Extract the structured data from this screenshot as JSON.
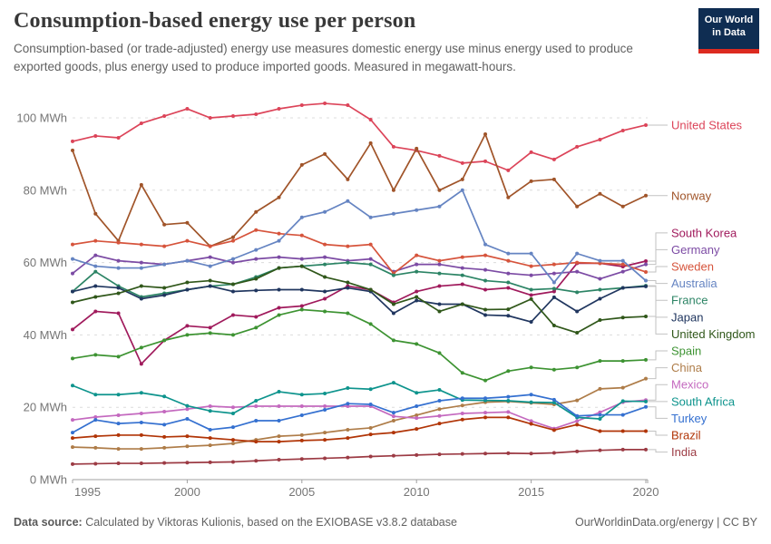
{
  "header": {
    "title": "Consumption-based energy use per person",
    "subtitle": "Consumption-based (or trade-adjusted) energy use measures domestic energy use minus energy used to produce exported goods, plus energy used to produce imported goods. Measured in megawatt-hours.",
    "logo": {
      "line1": "Our World",
      "line2": "in Data"
    }
  },
  "footer": {
    "source_label": "Data source:",
    "source_text": " Calculated by Viktoras Kulionis, based on the EXIOBASE v3.8.2 database",
    "link": "OurWorldinData.org/energy",
    "separator": " | ",
    "license": "CC BY"
  },
  "chart_data": {
    "type": "line",
    "title": "Consumption-based energy use per person",
    "unit": "MWh",
    "x": [
      1995,
      1996,
      1997,
      1998,
      1999,
      2000,
      2001,
      2002,
      2003,
      2004,
      2005,
      2006,
      2007,
      2008,
      2009,
      2010,
      2011,
      2012,
      2013,
      2014,
      2015,
      2016,
      2017,
      2018,
      2019,
      2020
    ],
    "x_ticks": [
      1995,
      2000,
      2005,
      2010,
      2015,
      2020
    ],
    "y_ticks": [
      0,
      20,
      40,
      60,
      80,
      100
    ],
    "y_tick_suffix": " MWh",
    "ylim": [
      0,
      105
    ],
    "grid": "dashed-horizontal",
    "legend_position": "right-of-line-ends",
    "series": [
      {
        "name": "United States",
        "color": "#dc4459",
        "values": [
          93.5,
          95,
          94.5,
          98.5,
          100.5,
          102.5,
          100,
          100.5,
          101,
          102.5,
          103.5,
          104,
          103.5,
          99.5,
          92,
          91,
          89.5,
          87.5,
          88,
          85.5,
          90.5,
          88.5,
          92,
          94,
          96.5,
          98
        ]
      },
      {
        "name": "Norway",
        "color": "#a05429",
        "values": [
          91,
          73.5,
          66,
          81.5,
          70.5,
          71,
          64.5,
          67,
          74,
          78,
          87,
          90,
          83,
          93,
          80,
          91.5,
          80,
          83,
          95.5,
          78,
          82.5,
          83,
          75.5,
          79,
          75.5,
          78.5
        ]
      },
      {
        "name": "South Korea",
        "color": "#a01a5c",
        "values": [
          41.5,
          46.5,
          46,
          32,
          38.5,
          42.5,
          42,
          45.5,
          45,
          47.5,
          48,
          50,
          53.5,
          52.5,
          49,
          52,
          53.5,
          54,
          52.5,
          53,
          51,
          52,
          59.8,
          59.8,
          58.9,
          60.4
        ]
      },
      {
        "name": "Germany",
        "color": "#7c4ba4",
        "values": [
          57,
          62,
          60.5,
          60,
          59.5,
          60.5,
          61.5,
          60,
          61,
          61.5,
          61,
          61.5,
          60.5,
          61,
          57.5,
          59.5,
          59.5,
          58.5,
          58,
          57,
          56.5,
          57,
          57.5,
          55.5,
          57.5,
          59.5
        ]
      },
      {
        "name": "Sweden",
        "color": "#d6543c",
        "values": [
          65,
          66,
          65.5,
          65,
          64.5,
          66,
          64.5,
          66,
          69,
          68,
          67.5,
          65,
          64.5,
          65,
          57,
          62,
          60.5,
          61.5,
          62,
          60.5,
          59,
          59.5,
          60,
          59.8,
          59.5,
          57.4
        ]
      },
      {
        "name": "Australia",
        "color": "#6584c2",
        "values": [
          61,
          59,
          58.5,
          58.5,
          59.5,
          60.5,
          59,
          61,
          63.5,
          66,
          72.5,
          74,
          77,
          72.5,
          73.5,
          74.5,
          75.5,
          80,
          65,
          62.5,
          62.5,
          54.5,
          62.5,
          60.5,
          60.5,
          55
        ]
      },
      {
        "name": "France",
        "color": "#2c8465",
        "values": [
          52,
          57.5,
          53.5,
          50.5,
          51.5,
          52.5,
          53.5,
          54,
          56,
          58.5,
          59,
          59.5,
          60,
          59.5,
          56.5,
          57.5,
          57,
          56.5,
          55,
          54.5,
          52.5,
          52.8,
          51.8,
          52.5,
          53,
          53.6
        ]
      },
      {
        "name": "Japan",
        "color": "#20365f",
        "values": [
          52,
          53.5,
          53,
          50,
          51,
          52.5,
          53.5,
          52,
          52.3,
          52.5,
          52.5,
          52,
          53,
          52,
          46,
          49.5,
          48.5,
          48.5,
          45.5,
          45.3,
          43.6,
          50.4,
          46.5,
          50,
          53,
          53.4
        ]
      },
      {
        "name": "United Kingdom",
        "color": "#30571a",
        "values": [
          49,
          50.5,
          51.5,
          53.5,
          53,
          54.5,
          55,
          54,
          55.5,
          58.5,
          59,
          56,
          54.5,
          52.5,
          48.5,
          50.5,
          46.5,
          48.5,
          47,
          47.1,
          49.9,
          42.6,
          40.6,
          44.1,
          44.8,
          45.1
        ]
      },
      {
        "name": "Spain",
        "color": "#3d9332",
        "values": [
          33.5,
          34.5,
          34,
          36.5,
          38.5,
          40,
          40.5,
          40,
          42,
          45.5,
          47,
          46.5,
          46,
          43,
          38.5,
          37.5,
          35,
          29.5,
          27.4,
          30,
          31,
          30.4,
          31,
          32.8,
          32.8,
          33.1
        ]
      },
      {
        "name": "China",
        "color": "#ae7c48",
        "values": [
          9,
          8.8,
          8.5,
          8.5,
          8.8,
          9.2,
          9.5,
          10,
          11,
          12,
          12.3,
          13,
          13.8,
          14.3,
          16.3,
          17.8,
          19.5,
          20.5,
          21.4,
          21.6,
          21.2,
          20.8,
          21.9,
          25.1,
          25.4,
          27.9
        ]
      },
      {
        "name": "Mexico",
        "color": "#c469bf",
        "values": [
          16.5,
          17.3,
          17.8,
          18.3,
          18.8,
          19.5,
          20.3,
          20,
          20.3,
          20.3,
          20.3,
          20.3,
          20.3,
          20.3,
          17.5,
          17,
          17.6,
          18.3,
          18.5,
          18.7,
          16.2,
          14.1,
          16.2,
          18.6,
          21.4,
          22
        ]
      },
      {
        "name": "South Africa",
        "color": "#0e948d",
        "values": [
          26,
          23.5,
          23.5,
          24,
          23,
          20.4,
          19,
          18.3,
          21.8,
          24.3,
          23.5,
          23.8,
          25.3,
          25,
          26.8,
          24,
          24.8,
          22,
          21.9,
          21.8,
          21.4,
          21.3,
          17.2,
          16.8,
          21.7,
          21.6
        ]
      },
      {
        "name": "Turkey",
        "color": "#3470d0",
        "values": [
          13,
          16.5,
          15.5,
          15.8,
          15.2,
          16.8,
          13.8,
          14.5,
          16.3,
          16.3,
          17.8,
          19.3,
          21,
          20.8,
          18.5,
          20.3,
          21.8,
          22.5,
          22.5,
          22.9,
          23.5,
          22.1,
          17.6,
          17.9,
          17.9,
          20.1
        ]
      },
      {
        "name": "Brazil",
        "color": "#b13507",
        "values": [
          11.5,
          12,
          12.3,
          12.3,
          11.8,
          12,
          11.5,
          11,
          10.5,
          10.5,
          10.8,
          11,
          11.5,
          12.5,
          13,
          14,
          15.5,
          16.6,
          17.2,
          17.2,
          15.4,
          13.7,
          15.2,
          13.4,
          13.4,
          13.4
        ]
      },
      {
        "name": "India",
        "color": "#9c3b44",
        "values": [
          4.3,
          4.4,
          4.5,
          4.5,
          4.6,
          4.7,
          4.8,
          4.9,
          5.2,
          5.5,
          5.7,
          5.9,
          6.1,
          6.4,
          6.6,
          6.8,
          7,
          7.1,
          7.2,
          7.3,
          7.2,
          7.4,
          7.8,
          8.1,
          8.3,
          8.3
        ]
      }
    ]
  }
}
